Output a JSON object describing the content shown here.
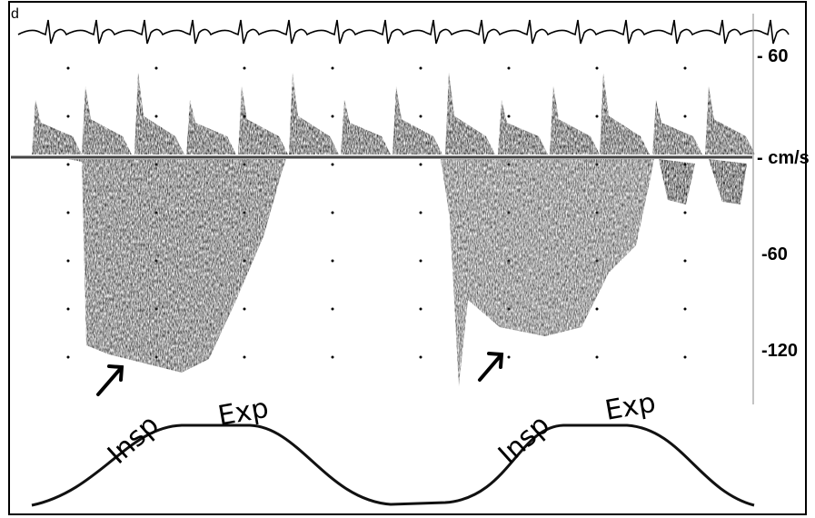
{
  "header": {
    "corner_label": "d"
  },
  "scale": {
    "labels": [
      "60",
      "cm/s",
      "-60",
      "-120"
    ]
  },
  "annotations": [
    {
      "insp": "Insp",
      "exp": "Exp"
    },
    {
      "insp": "Insp",
      "exp": "Exp"
    }
  ]
}
